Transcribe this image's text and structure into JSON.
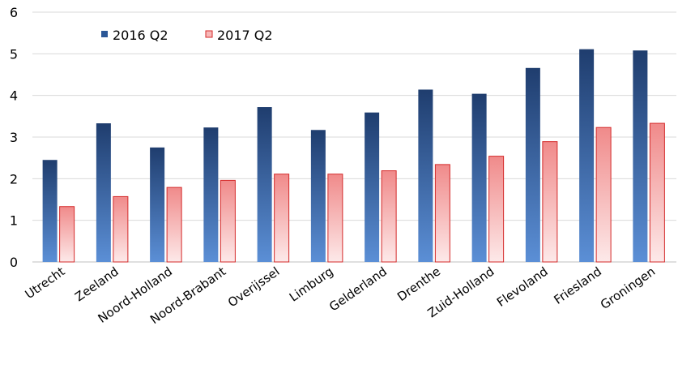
{
  "chart_data": {
    "type": "bar",
    "categories": [
      "Utrecht",
      "Zeeland",
      "Noord-Holland",
      "Noord-Brabant",
      "Overijssel",
      "Limburg",
      "Gelderland",
      "Drenthe",
      "Zuid-Holland",
      "Flevoland",
      "Friesland",
      "Groningen"
    ],
    "series": [
      {
        "name": "2016 Q2",
        "values": [
          2.45,
          3.33,
          2.75,
          3.23,
          3.72,
          3.17,
          3.59,
          4.14,
          4.04,
          4.66,
          5.11,
          5.08
        ],
        "color_top": "#1f3d6e",
        "color_bottom": "#5b8fd6"
      },
      {
        "name": "2017 Q2",
        "values": [
          1.33,
          1.57,
          1.79,
          1.96,
          2.11,
          2.11,
          2.19,
          2.34,
          2.54,
          2.89,
          3.23,
          3.33
        ],
        "color_top": "#f08a8a",
        "color_bottom": "#fde9e9",
        "border": "#d42a2a"
      }
    ],
    "y_ticks": [
      "0",
      "1",
      "2",
      "3",
      "4",
      "5",
      "6"
    ],
    "ylim": [
      0,
      6
    ],
    "grid": true,
    "legend_position": "top-left",
    "title": "",
    "xlabel": "",
    "ylabel": ""
  }
}
